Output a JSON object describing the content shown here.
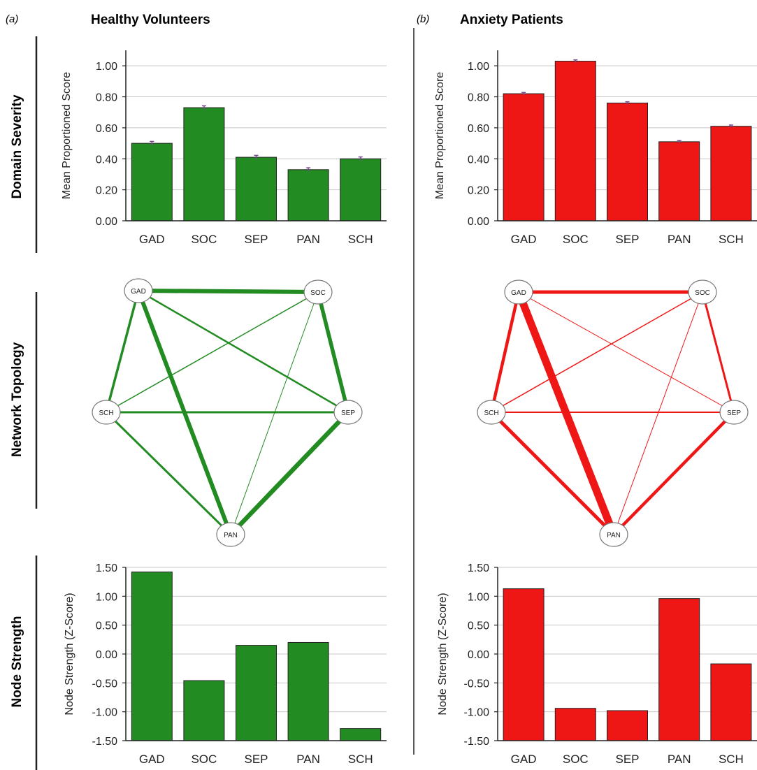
{
  "panels": {
    "a": {
      "letter": "(a)",
      "title": "Healthy Volunteers"
    },
    "b": {
      "letter": "(b)",
      "title": "Anxiety Patients"
    }
  },
  "row_labels": {
    "severity": "Domain Severity",
    "topology": "Network Topology",
    "strength": "Node Strength"
  },
  "colors": {
    "healthy": "#228b22",
    "anxiety": "#ef1616",
    "grid": "#c8c8c8",
    "axis": "#222222",
    "error_bar": "#7a4a90"
  },
  "chart_data": [
    {
      "type": "bar",
      "panel": "a",
      "categories": [
        "GAD",
        "SOC",
        "SEP",
        "PAN",
        "SCH"
      ],
      "values": [
        0.5,
        0.73,
        0.41,
        0.33,
        0.4
      ],
      "errors": [
        0.012,
        0.012,
        0.012,
        0.012,
        0.012
      ],
      "ylabel": "Mean Proportioned Score",
      "ylim": [
        0,
        1.1
      ],
      "yticks": [
        0,
        0.2,
        0.4,
        0.6,
        0.8,
        1.0
      ],
      "ytick_labels": [
        "0.00",
        "0.20",
        "0.40",
        "0.60",
        "0.80",
        "1.00"
      ],
      "grid": true,
      "color": "#228b22"
    },
    {
      "type": "bar",
      "panel": "b",
      "categories": [
        "GAD",
        "SOC",
        "SEP",
        "PAN",
        "SCH"
      ],
      "values": [
        0.82,
        1.03,
        0.76,
        0.51,
        0.61
      ],
      "errors": [
        0.008,
        0.008,
        0.008,
        0.008,
        0.008
      ],
      "ylabel": "Mean Proportioned Score",
      "ylim": [
        0,
        1.1
      ],
      "yticks": [
        0,
        0.2,
        0.4,
        0.6,
        0.8,
        1.0
      ],
      "ytick_labels": [
        "0.00",
        "0.20",
        "0.40",
        "0.60",
        "0.80",
        "1.00"
      ],
      "grid": true,
      "color": "#ef1616"
    },
    {
      "type": "network",
      "panel": "a",
      "nodes": [
        "GAD",
        "SOC",
        "SEP",
        "PAN",
        "SCH"
      ],
      "edges": [
        {
          "source": "GAD",
          "target": "SOC",
          "weight": 6
        },
        {
          "source": "GAD",
          "target": "SEP",
          "weight": 2.5
        },
        {
          "source": "GAD",
          "target": "PAN",
          "weight": 6
        },
        {
          "source": "GAD",
          "target": "SCH",
          "weight": 3.5
        },
        {
          "source": "SOC",
          "target": "SEP",
          "weight": 5.5
        },
        {
          "source": "SOC",
          "target": "PAN",
          "weight": 1
        },
        {
          "source": "SOC",
          "target": "SCH",
          "weight": 1.5
        },
        {
          "source": "SEP",
          "target": "PAN",
          "weight": 6.5
        },
        {
          "source": "SEP",
          "target": "SCH",
          "weight": 3
        },
        {
          "source": "PAN",
          "target": "SCH",
          "weight": 3
        }
      ],
      "color": "#228b22"
    },
    {
      "type": "network",
      "panel": "b",
      "nodes": [
        "GAD",
        "SOC",
        "SEP",
        "PAN",
        "SCH"
      ],
      "edges": [
        {
          "source": "GAD",
          "target": "SOC",
          "weight": 5
        },
        {
          "source": "GAD",
          "target": "SEP",
          "weight": 1
        },
        {
          "source": "GAD",
          "target": "PAN",
          "weight": 11
        },
        {
          "source": "GAD",
          "target": "SCH",
          "weight": 4.5
        },
        {
          "source": "SOC",
          "target": "SEP",
          "weight": 3
        },
        {
          "source": "SOC",
          "target": "PAN",
          "weight": 1
        },
        {
          "source": "SOC",
          "target": "SCH",
          "weight": 1.5
        },
        {
          "source": "SEP",
          "target": "PAN",
          "weight": 4.5
        },
        {
          "source": "SEP",
          "target": "SCH",
          "weight": 2
        },
        {
          "source": "PAN",
          "target": "SCH",
          "weight": 5
        }
      ],
      "color": "#ef1616"
    },
    {
      "type": "bar",
      "panel": "a",
      "categories": [
        "GAD",
        "SOC",
        "SEP",
        "PAN",
        "SCH"
      ],
      "values": [
        1.42,
        -0.46,
        0.15,
        0.2,
        -1.29
      ],
      "ylabel": "Node Strength (Z-Score)",
      "ylim": [
        -1.5,
        1.5
      ],
      "yticks": [
        -1.5,
        -1.0,
        -0.5,
        0,
        0.5,
        1.0,
        1.5
      ],
      "ytick_labels": [
        "-1.50",
        "-1.00",
        "-0.50",
        "0.00",
        "0.50",
        "1.00",
        "1.50"
      ],
      "grid": true,
      "color": "#228b22"
    },
    {
      "type": "bar",
      "panel": "b",
      "categories": [
        "GAD",
        "SOC",
        "SEP",
        "PAN",
        "SCH"
      ],
      "values": [
        1.13,
        -0.94,
        -0.98,
        0.96,
        -0.17
      ],
      "ylabel": "Node Strength (Z-Score)",
      "ylim": [
        -1.5,
        1.5
      ],
      "yticks": [
        -1.5,
        -1.0,
        -0.5,
        0,
        0.5,
        1.0,
        1.5
      ],
      "ytick_labels": [
        "-1.50",
        "-1.00",
        "-0.50",
        "0.00",
        "0.50",
        "1.00",
        "1.50"
      ],
      "grid": true,
      "color": "#ef1616"
    }
  ]
}
